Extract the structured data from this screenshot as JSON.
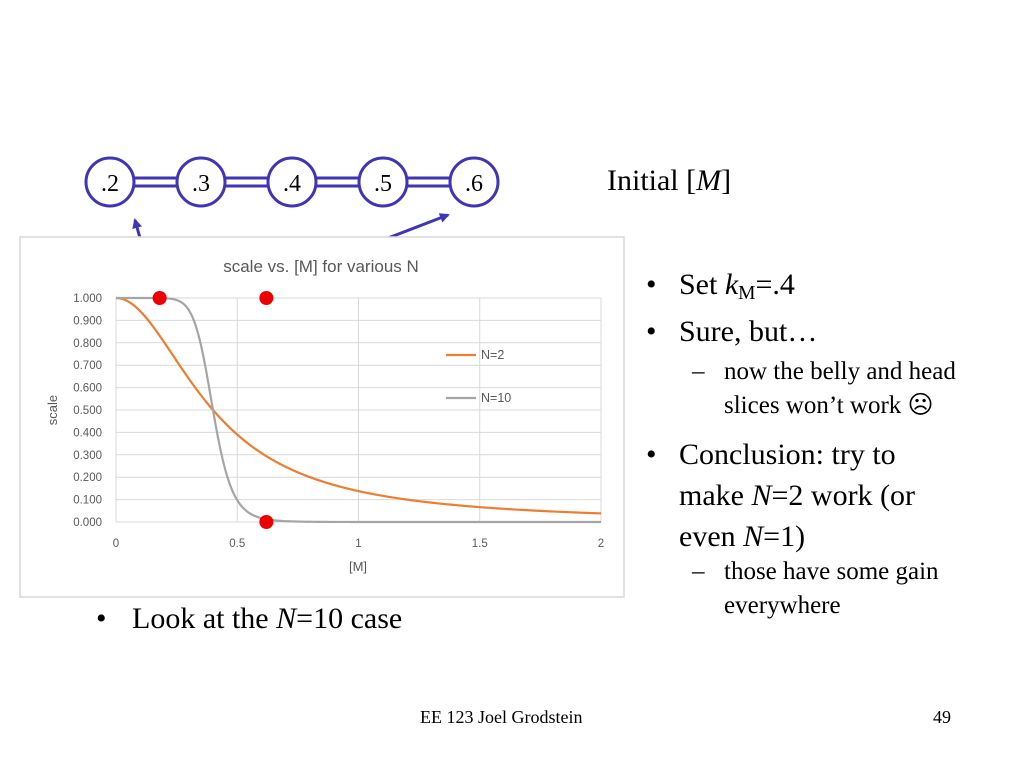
{
  "chain": {
    "nodes": [
      ".2",
      ".3",
      ".4",
      ".5",
      ".6"
    ],
    "label_prefix": "Initial [",
    "label_var": "M",
    "label_suffix": "]",
    "accent": "#3f35b5"
  },
  "chart_data": {
    "type": "line",
    "title": "scale vs. [M] for various N",
    "xlabel": "[M]",
    "ylabel": "scale",
    "xlim": [
      0,
      2
    ],
    "ylim": [
      0,
      1
    ],
    "x_ticks": [
      "0",
      "0.5",
      "1",
      "1.5",
      "2"
    ],
    "y_ticks": [
      "0.000",
      "0.100",
      "0.200",
      "0.300",
      "0.400",
      "0.500",
      "0.600",
      "0.700",
      "0.800",
      "0.900",
      "1.000"
    ],
    "grid": true,
    "legend_position": "right",
    "series": [
      {
        "name": "N=2",
        "color": "#ed7d31",
        "km": 0.4,
        "n": 2
      },
      {
        "name": "N=10",
        "color": "#a5a5a5",
        "km": 0.4,
        "n": 10
      }
    ],
    "markers": [
      {
        "x": 0.18,
        "y": 1.0,
        "color": "#ee0000"
      },
      {
        "x": 0.62,
        "y": 1.0,
        "color": "#ee0000"
      },
      {
        "x": 0.62,
        "y": 0.0,
        "color": "#ee0000"
      }
    ]
  },
  "bullets": {
    "b1": {
      "prefix": "Set ",
      "var": "k",
      "sub": "M",
      "suffix": "=.4"
    },
    "b2": {
      "text": "Sure, but…"
    },
    "b2_sub": {
      "line1": "now the belly and head",
      "line2": "slices won’t work ☹"
    },
    "b3": {
      "line1": "Conclusion: try to",
      "line2_pre": "make ",
      "line2_var": "N",
      "line2_post": "=2 work (or",
      "line3_pre": "even ",
      "line3_var": "N",
      "line3_post": "=1)"
    },
    "b3_sub": {
      "line1": "those have some gain",
      "line2": "everywhere"
    },
    "left": {
      "prefix": "Look at the ",
      "var": "N",
      "suffix": "=10 case"
    },
    "bullet_symbol": "•",
    "dash_symbol": "–"
  },
  "footer": {
    "center": "EE 123 Joel Grodstein",
    "page": "49"
  }
}
